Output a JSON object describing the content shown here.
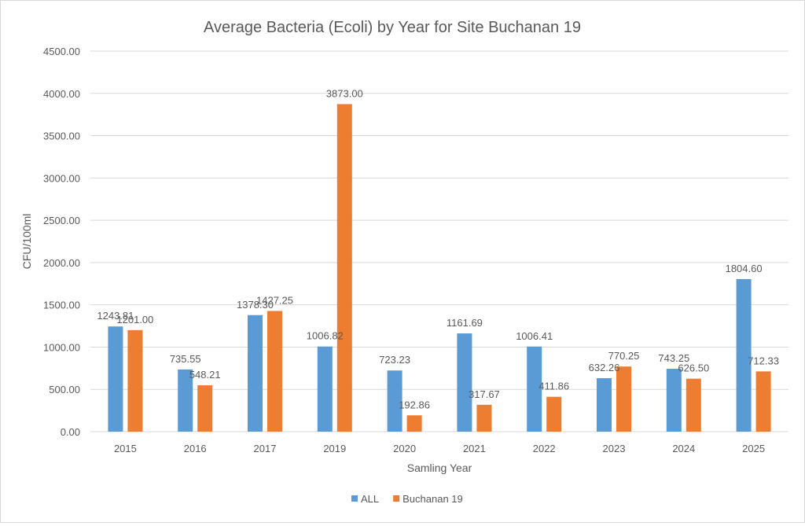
{
  "chart_data": {
    "type": "bar",
    "title": "Average Bacteria (Ecoli) by Year for Site Buchanan 19",
    "xlabel": "Samling Year",
    "ylabel": "CFU/100ml",
    "ylim": [
      0,
      4500
    ],
    "ytick_step": 500,
    "ytick_labels": [
      "0.00",
      "500.00",
      "1000.00",
      "1500.00",
      "2000.00",
      "2500.00",
      "3000.00",
      "3500.00",
      "4000.00",
      "4500.00"
    ],
    "grid": true,
    "legend_position": "bottom",
    "categories": [
      "2015",
      "2016",
      "2017",
      "2019",
      "2020",
      "2021",
      "2022",
      "2023",
      "2024",
      "2025"
    ],
    "series": [
      {
        "name": "ALL",
        "color": "#5b9bd5",
        "values": [
          1243.81,
          735.55,
          1378.3,
          1006.82,
          723.23,
          1161.69,
          1006.41,
          632.26,
          743.25,
          1804.6
        ],
        "labels": [
          "1243.81",
          "735.55",
          "1378.30",
          "1006.82",
          "723.23",
          "1161.69",
          "1006.41",
          "632.26",
          "743.25",
          "1804.60"
        ]
      },
      {
        "name": "Buchanan 19",
        "color": "#ed7d31",
        "values": [
          1201.0,
          548.21,
          1427.25,
          3873.0,
          192.86,
          317.67,
          411.86,
          770.25,
          626.5,
          712.33
        ],
        "labels": [
          "1201.00",
          "548.21",
          "1427.25",
          "3873.00",
          "192.86",
          "317.67",
          "411.86",
          "770.25",
          "626.50",
          "712.33"
        ]
      }
    ]
  }
}
